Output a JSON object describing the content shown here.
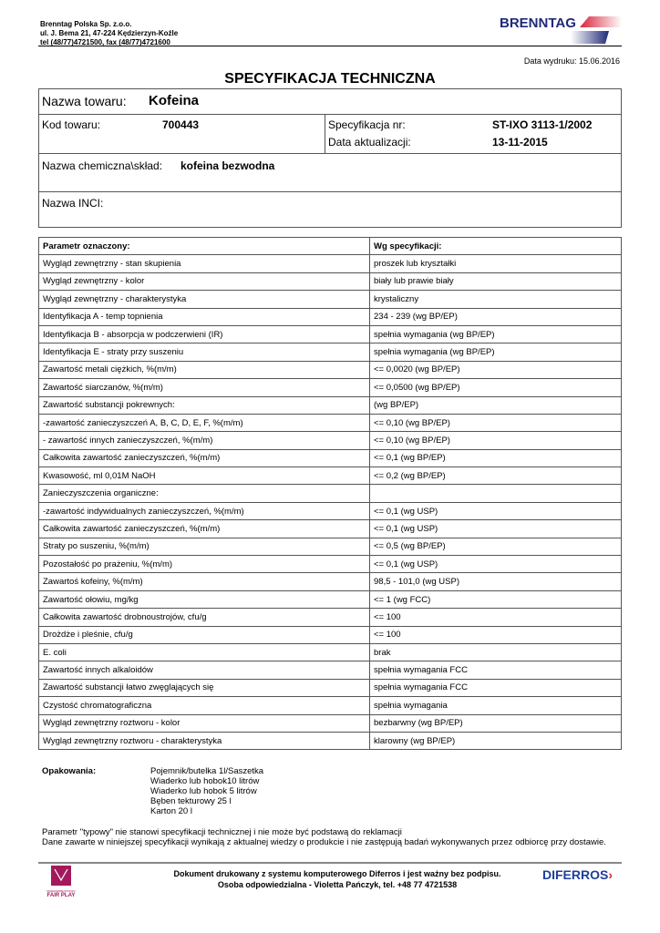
{
  "header": {
    "company_lines": [
      "Brenntag Polska Sp. z.o.o.",
      "ul. J. Bema 21, 47-224 Kędzierzyn-Koźle",
      "tel (48/77)4721500, fax (48/77)4721600"
    ],
    "logo": "BRENNTAG",
    "print_date": "Data wydruku: 15.06.2016"
  },
  "title": "SPECYFIKACJA TECHNICZNA",
  "product": {
    "name_label": "Nazwa towaru:",
    "name": "Kofeina",
    "code_label": "Kod towaru:",
    "code": "700443",
    "spec_label": "Specyfikacja nr:",
    "spec": "ST-IXO 3113-1/2002",
    "update_label": "Data aktualizacji:",
    "update": "13-11-2015",
    "chem_label": "Nazwa chemiczna\\skład:",
    "chem": "kofeina bezwodna",
    "inci_label": "Nazwa INCI:"
  },
  "table": {
    "headers": [
      "Parametr oznaczony:",
      "Wg specyfikacji:"
    ],
    "rows": [
      [
        "Wygląd zewnętrzny - stan skupienia",
        "proszek lub kryształki"
      ],
      [
        "Wygląd zewnętrzny - kolor",
        "biały lub prawie biały"
      ],
      [
        "Wygląd zewnętrzny - charakterystyka",
        "krystaliczny"
      ],
      [
        "Identyfikacja A - temp topnienia",
        "234 - 239  (wg  BP/EP)"
      ],
      [
        "Identyfikacja B - absorpcja  w podczerwieni (IR)",
        "spełnia wymagania  (wg  BP/EP)"
      ],
      [
        "Identyfikacja E - straty przy suszeniu",
        "spełnia wymagania  (wg  BP/EP)"
      ],
      [
        "Zawartość metali ciężkich, %(m/m)",
        "<= 0,0020  (wg  BP/EP)"
      ],
      [
        "Zawartość siarczanów, %(m/m)",
        "<= 0,0500  (wg  BP/EP)"
      ],
      [
        "Zawartość substancji pokrewnych:",
        " (wg  BP/EP)"
      ],
      [
        "-zawartość zanieczyszczeń A, B, C, D, E, F, %(m/m)",
        "<= 0,10  (wg  BP/EP)"
      ],
      [
        "- zawartość innych zanieczyszczeń, %(m/m)",
        "<= 0,10  (wg  BP/EP)"
      ],
      [
        "Całkowita zawartość zanieczyszczeń, %(m/m)",
        "<= 0,1  (wg  BP/EP)"
      ],
      [
        "Kwasowość, ml 0,01M NaOH",
        "<= 0,2  (wg  BP/EP)"
      ],
      [
        "Zanieczyszczenia organiczne:",
        ""
      ],
      [
        "-zawartość indywidualnych zanieczyszczeń, %(m/m)",
        "<= 0,1  (wg  USP)"
      ],
      [
        "Całkowita zawartość zanieczyszczeń, %(m/m)",
        "<= 0,1  (wg  USP)"
      ],
      [
        "Straty po suszeniu, %(m/m)",
        "<= 0,5  (wg  BP/EP)"
      ],
      [
        "Pozostałość po prażeniu, %(m/m)",
        "<= 0,1  (wg  USP)"
      ],
      [
        "Zawartoś kofeiny, %(m/m)",
        "98,5 - 101,0  (wg  USP)"
      ],
      [
        "Zawartość ołowiu, mg/kg",
        "<= 1  (wg  FCC)"
      ],
      [
        "Całkowita zawartość drobnoustrojów, cfu/g",
        "<= 100"
      ],
      [
        "Drożdże i pleśnie, cfu/g",
        "<= 100"
      ],
      [
        "E. coli",
        "brak"
      ],
      [
        "Zawartość innych alkaloidów",
        "spełnia wymagania FCC"
      ],
      [
        "Zawartość substancji łatwo zwęglających się",
        "spełnia wymagania FCC"
      ],
      [
        "Czystość chromatograficzna",
        "spełnia wymagania"
      ],
      [
        "Wygląd zewnętrzny roztworu - kolor",
        "bezbarwny  (wg  BP/EP)"
      ],
      [
        "Wygląd zewnętrzny roztworu - charakterystyka",
        "klarowny  (wg  BP/EP)"
      ]
    ]
  },
  "packaging": {
    "label": "Opakowania:",
    "items": [
      "Pojemnik/butelka 1l/Saszetka",
      "Wiaderko lub hobok10 litrów",
      "Wiaderko lub hobok 5 litrów",
      "Bęben tekturowy 25 l",
      "Karton 20 l"
    ]
  },
  "notes": [
    "Parametr \"typowy\" nie stanowi specyfikacji technicznej i nie może być podstawą do reklamacji",
    "Dane zawarte w niniejszej specyfikacji wynikają z aktualnej wiedzy o produkcie i nie zastępują badań wykonywanych przez odbiorcę przy dostawie."
  ],
  "footer": {
    "line1": "Dokument drukowany z systemu komputerowego Diferros i jest ważny bez podpisu.",
    "line2": "Osoba odpowiedzialna - Violetta Pańczyk, tel. +48 77 4721538",
    "fairplay_small": "PRZEDSIĘBIORSTWO",
    "fairplay": "FAIR PLAY",
    "diferros": "DIFERROS"
  },
  "colors": {
    "brand_blue": "#1f2a78",
    "brand_red": "#d9243a",
    "fairplay": "#a3195b",
    "diferros": "#1d3f9a"
  }
}
